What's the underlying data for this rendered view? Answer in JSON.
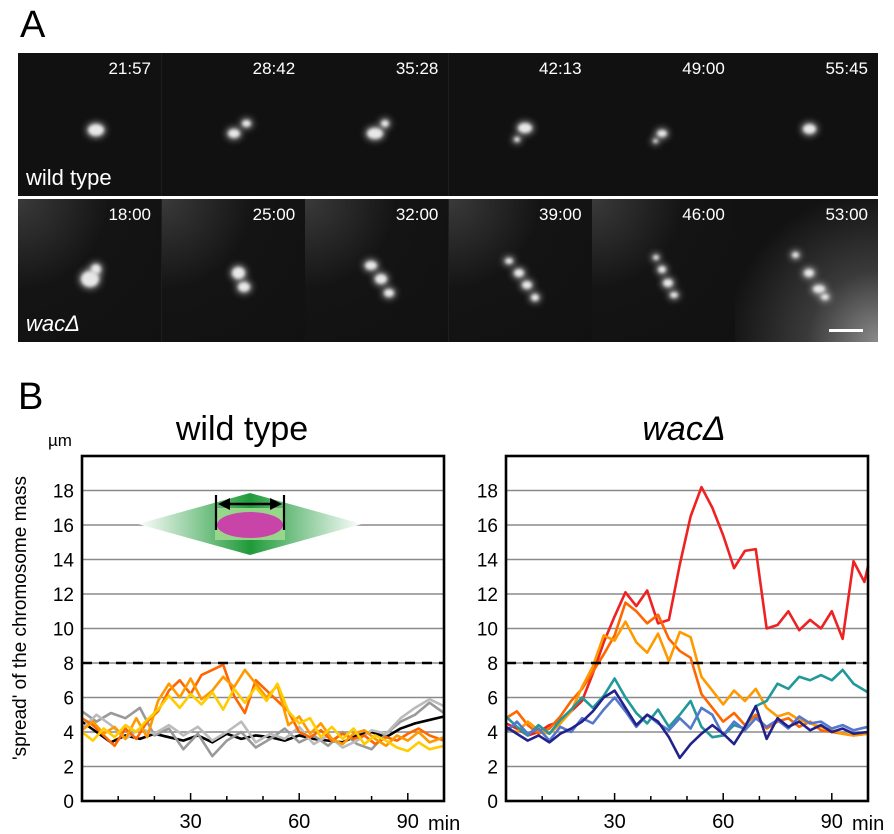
{
  "panelA": {
    "label": "A",
    "wild_type": {
      "label": "wild type",
      "times": [
        "21:57",
        "28:42",
        "35:28",
        "42:13",
        "49:00",
        "55:45"
      ]
    },
    "mutant": {
      "label": "wacΔ",
      "times": [
        "18:00",
        "25:00",
        "32:00",
        "39:00",
        "46:00",
        "53:00"
      ]
    }
  },
  "panelB": {
    "label": "B"
  },
  "chart_data": [
    {
      "type": "line",
      "title": "wild type",
      "ylabel": "'spread' of the chromosome mass",
      "yunit": "µm",
      "xunit": "min",
      "xlim": [
        0,
        100
      ],
      "ylim": [
        0,
        20
      ],
      "yticks": [
        0,
        2,
        4,
        6,
        8,
        10,
        12,
        14,
        16,
        18
      ],
      "xticks": [
        30,
        60,
        90
      ],
      "grid": true,
      "threshold": 8,
      "series": [
        {
          "color": "#000000",
          "x": [
            0,
            4,
            8,
            12,
            16,
            20,
            24,
            28,
            32,
            36,
            40,
            44,
            48,
            52,
            56,
            60,
            64,
            68,
            72,
            76,
            80,
            84,
            88,
            92,
            96,
            100
          ],
          "y": [
            4.6,
            4.0,
            3.4,
            3.8,
            3.6,
            3.9,
            3.7,
            3.5,
            3.8,
            3.4,
            3.9,
            3.6,
            3.8,
            3.7,
            3.5,
            3.8,
            3.6,
            3.5,
            3.4,
            3.8,
            4.0,
            3.7,
            4.2,
            4.5,
            4.7,
            4.9
          ]
        },
        {
          "color": "#999999",
          "x": [
            0,
            4,
            8,
            12,
            16,
            20,
            24,
            28,
            32,
            36,
            40,
            44,
            48,
            52,
            56,
            60,
            64,
            68,
            72,
            76,
            80,
            84,
            88,
            92,
            96,
            100
          ],
          "y": [
            5.2,
            4.6,
            5.1,
            4.8,
            5.4,
            3.8,
            4.2,
            3.0,
            3.9,
            2.6,
            3.5,
            4.0,
            3.1,
            3.6,
            4.2,
            3.4,
            3.8,
            3.2,
            4.0,
            3.3,
            3.0,
            3.9,
            4.6,
            5.0,
            5.7,
            5.1
          ]
        },
        {
          "color": "#bbbbbb",
          "x": [
            0,
            4,
            8,
            12,
            16,
            20,
            24,
            28,
            32,
            36,
            40,
            44,
            48,
            52,
            56,
            60,
            64,
            68,
            72,
            76,
            80,
            84,
            88,
            92,
            96,
            100
          ],
          "y": [
            4.2,
            5.0,
            4.4,
            3.6,
            4.2,
            3.9,
            4.4,
            3.8,
            4.3,
            3.5,
            4.0,
            4.6,
            3.4,
            3.9,
            3.6,
            4.3,
            3.3,
            3.8,
            3.1,
            3.5,
            4.1,
            3.9,
            4.8,
            5.4,
            5.9,
            5.5
          ]
        },
        {
          "color": "#ff6600",
          "x": [
            0,
            3,
            6,
            9,
            12,
            15,
            18,
            21,
            24,
            27,
            30,
            33,
            36,
            39,
            42,
            45,
            48,
            51,
            54,
            57,
            60,
            63,
            66,
            69,
            72,
            75,
            78,
            81,
            84,
            87,
            90,
            93,
            96,
            100
          ],
          "y": [
            4.8,
            4.4,
            3.8,
            3.2,
            4.2,
            3.6,
            4.6,
            5.2,
            6.4,
            7.0,
            6.2,
            7.3,
            7.6,
            7.9,
            6.1,
            5.1,
            7.0,
            6.4,
            5.8,
            5.2,
            4.0,
            3.7,
            4.1,
            3.5,
            3.9,
            3.6,
            3.8,
            3.3,
            3.7,
            3.5,
            3.9,
            4.2,
            3.8,
            3.5
          ]
        },
        {
          "color": "#ff9900",
          "x": [
            0,
            3,
            6,
            9,
            12,
            15,
            18,
            21,
            24,
            27,
            30,
            33,
            36,
            39,
            42,
            45,
            48,
            51,
            54,
            57,
            60,
            63,
            66,
            69,
            72,
            75,
            78,
            81,
            84,
            87,
            90,
            93,
            96,
            100
          ],
          "y": [
            4.1,
            4.6,
            3.9,
            4.3,
            3.6,
            4.8,
            3.7,
            5.8,
            6.8,
            6.0,
            7.1,
            5.9,
            6.4,
            7.2,
            6.6,
            7.6,
            6.8,
            6.0,
            6.7,
            4.4,
            4.9,
            3.9,
            4.5,
            3.6,
            3.3,
            3.9,
            4.1,
            3.6,
            3.2,
            3.8,
            3.5,
            4.0,
            3.4,
            3.7
          ]
        },
        {
          "color": "#ffcc00",
          "x": [
            0,
            3,
            6,
            9,
            12,
            15,
            18,
            21,
            24,
            27,
            30,
            33,
            36,
            39,
            42,
            45,
            48,
            51,
            54,
            57,
            60,
            63,
            66,
            69,
            72,
            75,
            78,
            81,
            84,
            87,
            90,
            93,
            96,
            100
          ],
          "y": [
            4.0,
            3.5,
            4.2,
            3.7,
            4.4,
            4.0,
            4.7,
            5.3,
            6.1,
            5.4,
            6.2,
            5.6,
            6.3,
            5.3,
            6.5,
            5.7,
            6.6,
            5.8,
            6.8,
            5.2,
            4.5,
            4.8,
            3.7,
            4.3,
            3.6,
            4.2,
            3.3,
            3.8,
            3.5,
            3.1,
            2.9,
            3.4,
            3.0,
            3.2
          ]
        }
      ]
    },
    {
      "type": "line",
      "title": "wacΔ",
      "xunit": "min",
      "xlim": [
        0,
        100
      ],
      "ylim": [
        0,
        20
      ],
      "yticks": [
        0,
        2,
        4,
        6,
        8,
        10,
        12,
        14,
        16,
        18
      ],
      "xticks": [
        30,
        60,
        90
      ],
      "grid": true,
      "threshold": 8,
      "series": [
        {
          "color": "#ee2222",
          "x": [
            0,
            3,
            6,
            9,
            12,
            15,
            18,
            21,
            24,
            27,
            30,
            33,
            36,
            39,
            42,
            45,
            48,
            51,
            54,
            57,
            60,
            63,
            66,
            69,
            72,
            75,
            78,
            81,
            84,
            87,
            90,
            93,
            96,
            99,
            100
          ],
          "y": [
            4.5,
            4.2,
            3.8,
            4.0,
            4.4,
            4.6,
            5.2,
            5.8,
            7.4,
            9.2,
            10.7,
            12.1,
            11.3,
            12.2,
            10.3,
            10.5,
            13.7,
            16.5,
            18.2,
            17.0,
            15.4,
            13.5,
            14.5,
            14.6,
            10.0,
            10.2,
            11.0,
            9.9,
            10.5,
            10.0,
            11.0,
            9.4,
            13.9,
            12.7,
            13.6
          ]
        },
        {
          "color": "#ff6600",
          "x": [
            0,
            3,
            6,
            9,
            12,
            15,
            18,
            21,
            24,
            27,
            30,
            33,
            36,
            39,
            42,
            45,
            48,
            51,
            54,
            57,
            60,
            63,
            66,
            69,
            72,
            75,
            78,
            81,
            84,
            87,
            90,
            93,
            96,
            100
          ],
          "y": [
            4.8,
            5.2,
            4.4,
            3.9,
            4.2,
            4.9,
            5.8,
            6.5,
            7.5,
            8.5,
            9.6,
            11.5,
            11.0,
            10.3,
            10.8,
            9.4,
            8.7,
            8.3,
            6.2,
            5.4,
            4.6,
            5.1,
            4.4,
            5.0,
            4.2,
            4.6,
            4.8,
            4.3,
            4.6,
            4.1,
            4.0,
            3.9,
            3.8,
            3.9
          ]
        },
        {
          "color": "#ff9900",
          "x": [
            0,
            3,
            6,
            9,
            12,
            15,
            18,
            21,
            24,
            27,
            30,
            33,
            36,
            39,
            42,
            45,
            48,
            51,
            54,
            57,
            60,
            63,
            66,
            69,
            72,
            75,
            78,
            81,
            84,
            87,
            90,
            93,
            96,
            100
          ],
          "y": [
            4.2,
            4.0,
            4.6,
            4.1,
            3.9,
            4.5,
            5.2,
            6.6,
            7.8,
            9.6,
            9.3,
            10.4,
            9.2,
            8.6,
            9.7,
            8.1,
            9.8,
            9.5,
            7.2,
            6.4,
            5.6,
            6.4,
            5.8,
            6.5,
            5.4,
            4.9,
            5.1,
            4.7,
            4.5,
            4.3,
            4.1,
            3.9,
            3.8,
            3.9
          ]
        },
        {
          "color": "#229999",
          "x": [
            0,
            3,
            6,
            9,
            12,
            15,
            18,
            21,
            24,
            27,
            30,
            33,
            36,
            39,
            42,
            45,
            48,
            51,
            54,
            57,
            60,
            63,
            66,
            69,
            72,
            75,
            78,
            81,
            84,
            87,
            90,
            93,
            96,
            100
          ],
          "y": [
            4.9,
            4.3,
            3.8,
            4.4,
            3.9,
            4.7,
            5.3,
            6.0,
            5.4,
            6.1,
            7.1,
            6.0,
            5.1,
            4.5,
            5.3,
            4.3,
            5.0,
            5.8,
            4.3,
            3.7,
            3.8,
            4.4,
            4.2,
            5.5,
            5.8,
            6.8,
            6.5,
            7.2,
            7.0,
            7.3,
            7.0,
            7.6,
            6.8,
            6.3
          ]
        },
        {
          "color": "#5577cc",
          "x": [
            0,
            3,
            6,
            9,
            12,
            15,
            18,
            21,
            24,
            27,
            30,
            33,
            36,
            39,
            42,
            45,
            48,
            51,
            54,
            57,
            60,
            63,
            66,
            69,
            72,
            75,
            78,
            81,
            84,
            87,
            90,
            93,
            96,
            100
          ],
          "y": [
            4.0,
            4.6,
            3.9,
            4.2,
            3.5,
            4.3,
            4.0,
            4.8,
            4.5,
            5.3,
            6.0,
            5.2,
            4.3,
            5.0,
            4.5,
            4.1,
            4.8,
            4.2,
            5.4,
            5.0,
            3.8,
            4.6,
            4.1,
            4.8,
            4.3,
            4.7,
            4.2,
            4.9,
            4.5,
            4.6,
            4.2,
            4.4,
            4.1,
            4.3
          ]
        },
        {
          "color": "#22228a",
          "x": [
            0,
            3,
            6,
            9,
            12,
            15,
            18,
            21,
            24,
            27,
            30,
            33,
            36,
            39,
            42,
            45,
            48,
            51,
            54,
            57,
            60,
            63,
            66,
            69,
            72,
            75,
            78,
            81,
            84,
            87,
            90,
            93,
            96,
            100
          ],
          "y": [
            4.3,
            3.9,
            3.5,
            3.8,
            3.4,
            3.9,
            4.2,
            4.6,
            5.2,
            6.0,
            6.4,
            5.4,
            4.4,
            5.0,
            4.6,
            3.7,
            2.5,
            3.3,
            3.9,
            4.4,
            3.9,
            3.3,
            4.3,
            5.5,
            3.6,
            4.8,
            4.3,
            4.6,
            4.1,
            4.4,
            4.0,
            4.2,
            3.9,
            4.0
          ]
        }
      ]
    }
  ]
}
